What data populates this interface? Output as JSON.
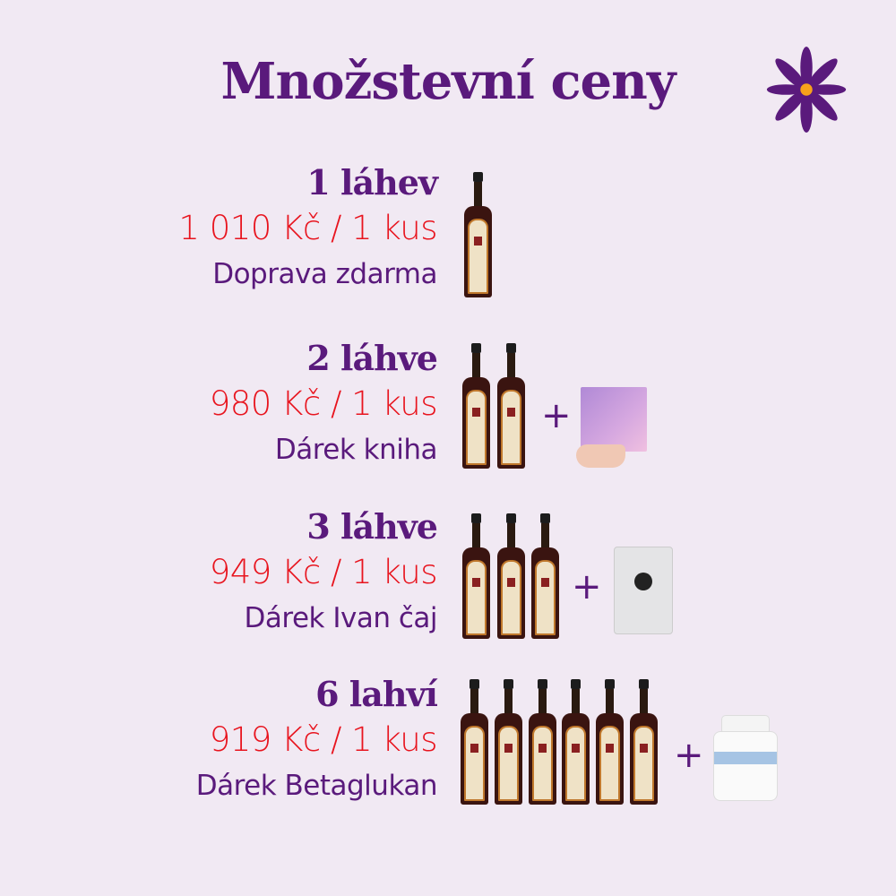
{
  "title": "Množstevní ceny",
  "brand_colors": {
    "purple": "#5a1a7c",
    "red": "#e8141e",
    "background": "#f1e9f3",
    "flower_center": "#f7a21b"
  },
  "icons": {
    "logo": "purple-flower-icon",
    "plus": "plus-icon"
  },
  "offers": [
    {
      "qty": "1 láhev",
      "price": "1 010 Kč / 1 kus",
      "benefit": "Doprava zdarma",
      "bottles": 1,
      "gift_image": null
    },
    {
      "qty": "2 láhve",
      "price": "980 Kč / 1 kus",
      "benefit": "Dárek kniha",
      "bottles": 2,
      "gift_image": "book"
    },
    {
      "qty": "3 láhve",
      "price": "949 Kč / 1 kus",
      "benefit": "Dárek Ivan čaj",
      "bottles": 3,
      "gift_image": "tea-pouch"
    },
    {
      "qty": "6 lahví",
      "price": "919 Kč / 1 kus",
      "benefit": "Dárek Betaglukan",
      "bottles": 6,
      "gift_image": "supplement-jar"
    }
  ],
  "plus_sign": "+"
}
